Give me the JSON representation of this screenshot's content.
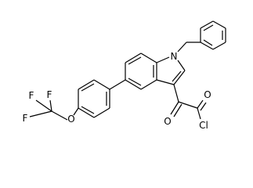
{
  "atoms": {
    "labels": [
      "N",
      "O",
      "O",
      "Cl",
      "O",
      "F",
      "F",
      "F"
    ]
  }
}
